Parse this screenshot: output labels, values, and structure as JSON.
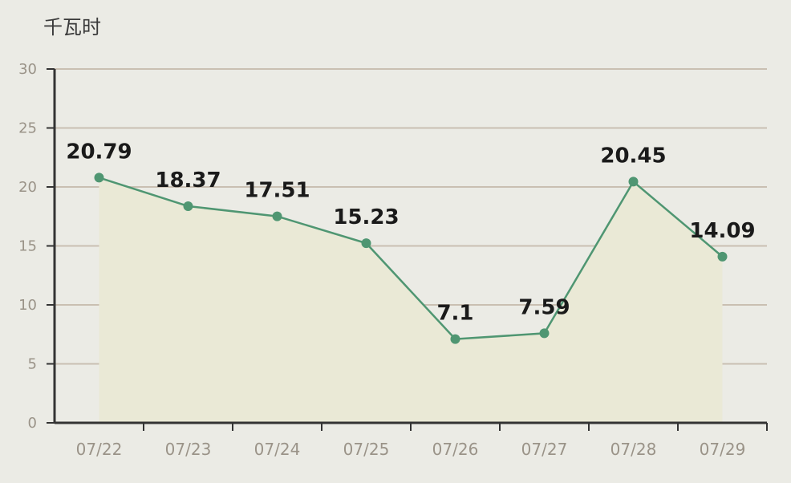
{
  "unit_label": "千瓦时",
  "chart_data": {
    "type": "area",
    "title": "",
    "xlabel": "",
    "ylabel": "千瓦时",
    "categories": [
      "07/22",
      "07/23",
      "07/24",
      "07/25",
      "07/26",
      "07/27",
      "07/28",
      "07/29"
    ],
    "series": [
      {
        "values": [
          20.79,
          18.37,
          17.51,
          15.23,
          7.1,
          7.59,
          20.45,
          14.09
        ]
      }
    ],
    "ylim": [
      0,
      30
    ],
    "yticks": [
      0,
      5,
      10,
      15,
      20,
      25,
      30
    ],
    "grid": true,
    "data_labels": [
      "20.79",
      "18.37",
      "17.51",
      "15.23",
      "7.1",
      "7.59",
      "20.45",
      "14.09"
    ],
    "colors": {
      "line": "#4f9672",
      "area": "#eae9d6",
      "grid": "#c9bfb2",
      "axis": "#333333"
    }
  }
}
